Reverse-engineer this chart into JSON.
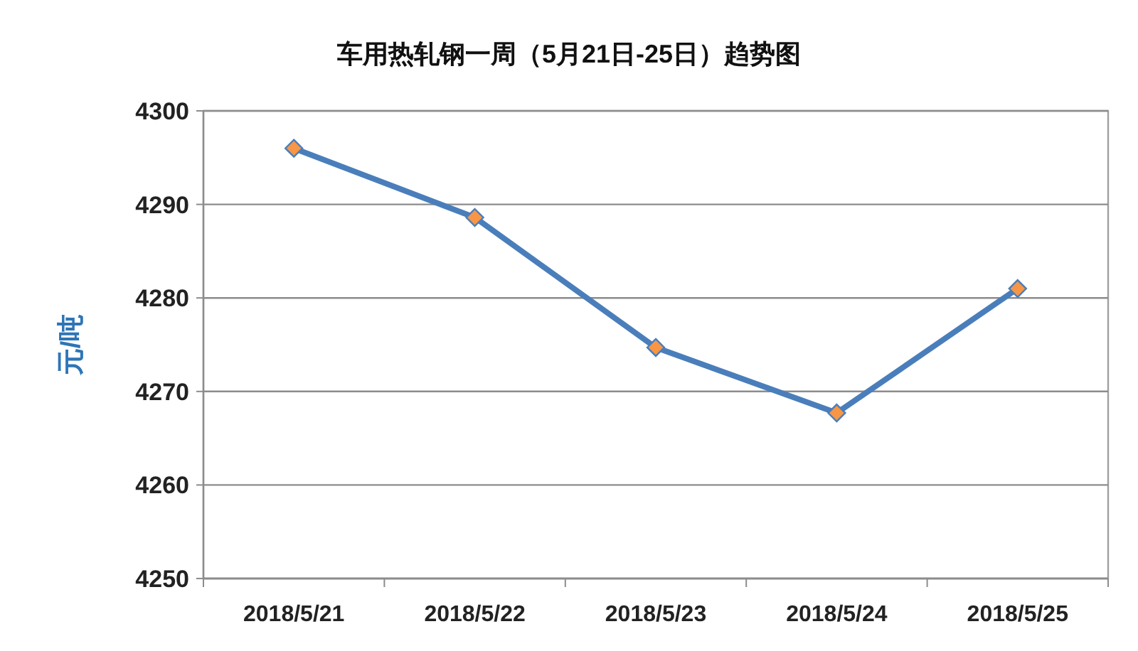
{
  "chart_data": {
    "type": "line",
    "title": "车用热轧钢一周（5月21日-25日）趋势图",
    "ylabel": "元/吨",
    "categories": [
      "2018/5/21",
      "2018/5/22",
      "2018/5/23",
      "2018/5/24",
      "2018/5/25"
    ],
    "series": [
      {
        "color": "#4a7ebb",
        "values": [
          4296,
          4288.6,
          4274.7,
          4267.7,
          4281
        ]
      }
    ],
    "ylim": [
      4250,
      4300
    ],
    "yticks": [
      4250,
      4260,
      4270,
      4280,
      4290,
      4300
    ],
    "grid": "y",
    "marker": "diamond"
  }
}
